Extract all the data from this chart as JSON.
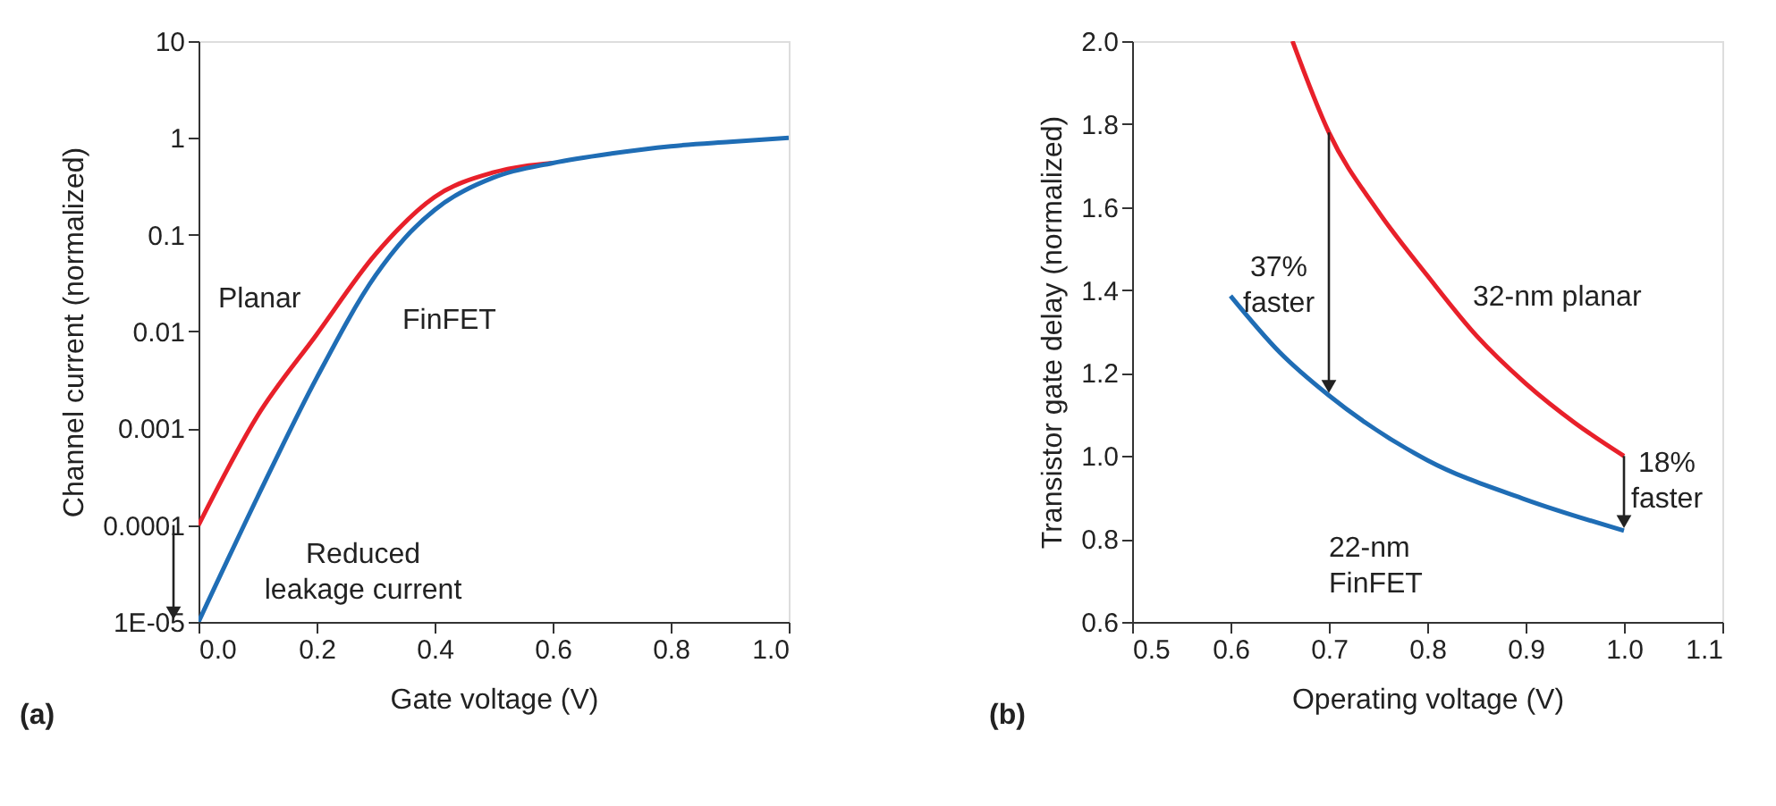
{
  "chart_data": [
    {
      "type": "line",
      "xlabel": "Gate voltage (V)",
      "ylabel": "Channel current (normalized)",
      "log": "y",
      "grid": false,
      "xlim": [
        0,
        1
      ],
      "xticks": [
        {
          "value": 0,
          "label": "0.0"
        },
        {
          "value": 0.2,
          "label": "0.2"
        },
        {
          "value": 0.4,
          "label": "0.4"
        },
        {
          "value": 0.6,
          "label": "0.6"
        },
        {
          "value": 0.8,
          "label": "0.8"
        },
        {
          "value": 1,
          "label": "1.0"
        }
      ],
      "ylim": [
        1e-05,
        10
      ],
      "yticks": [
        {
          "value": 1e-05,
          "label": "1E-05"
        },
        {
          "value": 0.0001,
          "label": "0.0001"
        },
        {
          "value": 0.001,
          "label": "0.001"
        },
        {
          "value": 0.01,
          "label": "0.01"
        },
        {
          "value": 0.1,
          "label": "0.1"
        },
        {
          "value": 1,
          "label": "1"
        },
        {
          "value": 10,
          "label": "10"
        }
      ],
      "series": [
        {
          "name": "Planar",
          "color": "#e8202a",
          "x": [
            0,
            0.1,
            0.2,
            0.3,
            0.4,
            0.5,
            0.6
          ],
          "values": [
            0.0001,
            0.00135,
            0.0093,
            0.063,
            0.245,
            0.44,
            0.55
          ]
        },
        {
          "name": "FinFET",
          "color": "#1f6db5",
          "x": [
            0,
            0.1,
            0.2,
            0.3,
            0.35,
            0.4,
            0.5,
            0.6,
            0.7,
            0.8,
            0.9,
            1.0
          ],
          "values": [
            1e-05,
            0.000195,
            0.0033,
            0.038,
            0.093,
            0.18,
            0.39,
            0.55,
            0.69,
            0.82,
            0.91,
            1.0
          ]
        }
      ],
      "annotations": [
        {
          "text": "Reduced leakage current",
          "x": 0,
          "y": 1e-05
        },
        "(a)"
      ]
    },
    {
      "type": "line",
      "xlabel": "Operating voltage (V)",
      "ylabel": "Transistor gate delay (normalized)",
      "grid": false,
      "xlim": [
        0.5,
        1.1
      ],
      "xticks": [
        {
          "value": 0.5,
          "label": "0.5"
        },
        {
          "value": 0.6,
          "label": "0.6"
        },
        {
          "value": 0.7,
          "label": "0.7"
        },
        {
          "value": 0.8,
          "label": "0.8"
        },
        {
          "value": 0.9,
          "label": "0.9"
        },
        {
          "value": 1.0,
          "label": "1.0"
        },
        {
          "value": 1.1,
          "label": "1.1"
        }
      ],
      "ylim": [
        0.6,
        2.0
      ],
      "yticks": [
        0.6,
        0.8,
        {
          "value": 1.0,
          "label": "1.0"
        },
        1.2,
        1.4,
        1.6,
        1.8,
        {
          "value": 2.0,
          "label": "2.0"
        }
      ],
      "series": [
        {
          "name": "32-nm planar",
          "color": "#e8202a",
          "x": [
            0.663,
            0.7,
            0.75,
            0.8,
            0.85,
            0.9,
            0.95,
            1.0
          ],
          "values": [
            2.0,
            1.78,
            1.59,
            1.435,
            1.29,
            1.175,
            1.08,
            1.0
          ]
        },
        {
          "name": "22-nm FinFET",
          "color": "#1f6db5",
          "x": [
            0.6,
            0.65,
            0.7,
            0.8,
            0.9,
            1.0
          ],
          "values": [
            1.386,
            1.25,
            1.146,
            0.99,
            0.895,
            0.82
          ]
        }
      ],
      "annotations": [
        {
          "text": "37% faster",
          "x": 0.7,
          "y": 1.146
        },
        {
          "text": "18% faster",
          "x": 1.0,
          "y": 0.82
        },
        "(b)"
      ]
    }
  ]
}
